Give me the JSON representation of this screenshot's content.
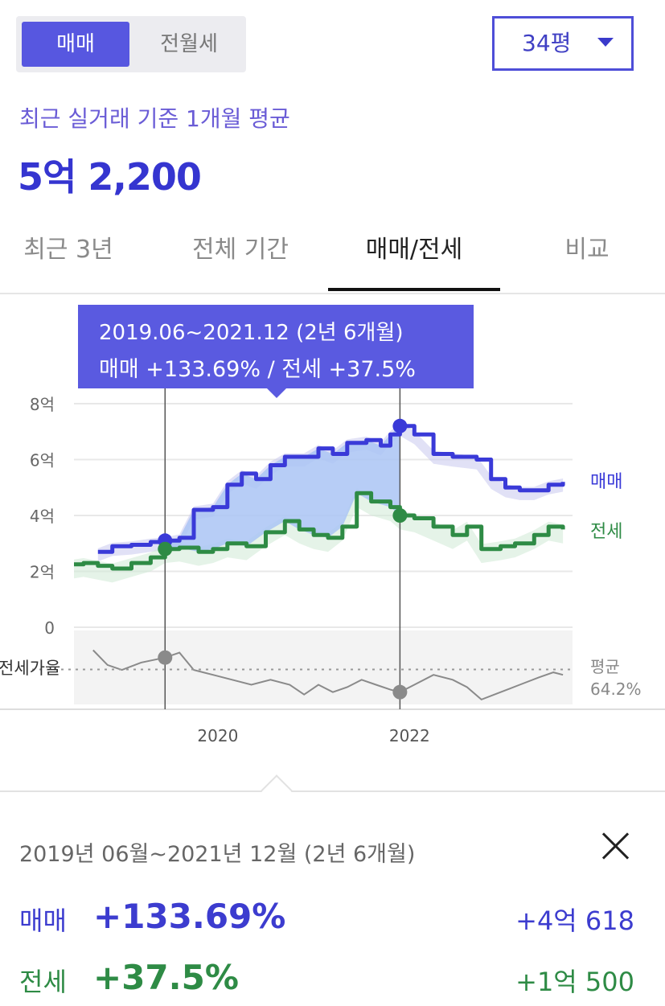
{
  "toggle": {
    "sale_label": "매매",
    "rent_label": "전월세"
  },
  "size_select": {
    "value": "34평"
  },
  "summary": {
    "subtitle": "최근 실거래 기준 1개월 평균",
    "price": "5억 2,200"
  },
  "tabs": [
    {
      "label": "최근 3년"
    },
    {
      "label": "전체 기간"
    },
    {
      "label": "매매/전세",
      "active": true
    },
    {
      "label": "비교"
    }
  ],
  "tooltip": {
    "range": "2019.06~2021.12 (2년 6개월)",
    "changes": "매매 +133.69%  /  전세 +37.5%"
  },
  "chart_data": {
    "type": "line",
    "y_unit": "억",
    "ylim": [
      0,
      8
    ],
    "yticks": [
      {
        "value": 0,
        "label": "0"
      },
      {
        "value": 2,
        "label": "2억"
      },
      {
        "value": 4,
        "label": "4억"
      },
      {
        "value": 6,
        "label": "6억"
      },
      {
        "value": 8,
        "label": "8억"
      }
    ],
    "xticks": [
      {
        "x": 2020.0,
        "label": "2020"
      },
      {
        "x": 2022.0,
        "label": "2022"
      }
    ],
    "x_range": [
      2018.5,
      2023.7
    ],
    "series": [
      {
        "name": "매매",
        "color": "#3a3ad8",
        "band_color": "#c9c8ef",
        "points": [
          [
            2018.75,
            2.7
          ],
          [
            2018.9,
            2.9
          ],
          [
            2019.1,
            2.95
          ],
          [
            2019.3,
            3.05
          ],
          [
            2019.45,
            3.1
          ],
          [
            2019.6,
            3.2
          ],
          [
            2019.75,
            4.2
          ],
          [
            2019.95,
            4.3
          ],
          [
            2020.1,
            5.1
          ],
          [
            2020.25,
            5.5
          ],
          [
            2020.4,
            5.3
          ],
          [
            2020.55,
            5.8
          ],
          [
            2020.7,
            6.1
          ],
          [
            2020.9,
            6.1
          ],
          [
            2021.05,
            6.4
          ],
          [
            2021.2,
            6.2
          ],
          [
            2021.35,
            6.6
          ],
          [
            2021.55,
            6.7
          ],
          [
            2021.7,
            6.5
          ],
          [
            2021.8,
            6.9
          ],
          [
            2021.9,
            7.2
          ],
          [
            2022.05,
            6.9
          ],
          [
            2022.25,
            6.2
          ],
          [
            2022.45,
            6.1
          ],
          [
            2022.7,
            6.0
          ],
          [
            2022.85,
            5.3
          ],
          [
            2023.0,
            5.0
          ],
          [
            2023.15,
            4.9
          ],
          [
            2023.3,
            4.9
          ],
          [
            2023.45,
            5.1
          ],
          [
            2023.6,
            5.2
          ]
        ]
      },
      {
        "name": "전세",
        "color": "#2e8b45",
        "band_color": "#cfe9d5",
        "points": [
          [
            2018.5,
            2.25
          ],
          [
            2018.6,
            2.3
          ],
          [
            2018.75,
            2.2
          ],
          [
            2018.9,
            2.1
          ],
          [
            2019.1,
            2.3
          ],
          [
            2019.3,
            2.5
          ],
          [
            2019.45,
            2.8
          ],
          [
            2019.6,
            2.85
          ],
          [
            2019.8,
            2.7
          ],
          [
            2019.95,
            2.8
          ],
          [
            2020.1,
            3.0
          ],
          [
            2020.3,
            2.9
          ],
          [
            2020.5,
            3.4
          ],
          [
            2020.7,
            3.8
          ],
          [
            2020.85,
            3.5
          ],
          [
            2021.0,
            3.3
          ],
          [
            2021.15,
            3.2
          ],
          [
            2021.3,
            3.6
          ],
          [
            2021.45,
            4.8
          ],
          [
            2021.6,
            4.5
          ],
          [
            2021.8,
            4.3
          ],
          [
            2021.9,
            4.0
          ],
          [
            2022.05,
            3.9
          ],
          [
            2022.25,
            3.6
          ],
          [
            2022.45,
            3.3
          ],
          [
            2022.6,
            3.6
          ],
          [
            2022.75,
            2.8
          ],
          [
            2022.95,
            2.9
          ],
          [
            2023.1,
            3.0
          ],
          [
            2023.3,
            3.3
          ],
          [
            2023.45,
            3.6
          ],
          [
            2023.6,
            3.5
          ]
        ]
      },
      {
        "name": "전세가율",
        "color": "#8a8a8a",
        "panel": "ratio",
        "average_label": "평균",
        "average_value": "64.2%",
        "average": 64.2,
        "ylim": [
          50,
          80
        ],
        "points": [
          [
            2018.7,
            72
          ],
          [
            2018.85,
            66
          ],
          [
            2019.0,
            64
          ],
          [
            2019.2,
            67
          ],
          [
            2019.45,
            69
          ],
          [
            2019.6,
            71
          ],
          [
            2019.75,
            64
          ],
          [
            2019.95,
            62
          ],
          [
            2020.15,
            60
          ],
          [
            2020.35,
            58
          ],
          [
            2020.55,
            60
          ],
          [
            2020.75,
            58
          ],
          [
            2020.9,
            54
          ],
          [
            2021.05,
            58
          ],
          [
            2021.2,
            55
          ],
          [
            2021.35,
            57
          ],
          [
            2021.5,
            60
          ],
          [
            2021.65,
            58
          ],
          [
            2021.8,
            56
          ],
          [
            2021.9,
            55
          ],
          [
            2022.05,
            58
          ],
          [
            2022.25,
            62
          ],
          [
            2022.45,
            60
          ],
          [
            2022.6,
            57
          ],
          [
            2022.75,
            52
          ],
          [
            2022.95,
            55
          ],
          [
            2023.15,
            58
          ],
          [
            2023.35,
            61
          ],
          [
            2023.5,
            63
          ],
          [
            2023.6,
            62
          ]
        ]
      }
    ],
    "series_labels": {
      "sale": "매매",
      "rent": "전세",
      "ratio": "전세가율"
    },
    "selection": {
      "start": 2019.45,
      "end": 2021.9
    }
  },
  "detail": {
    "range": "2019년 06월~2021년 12월 (2년 6개월)",
    "sale": {
      "label": "매매",
      "pct": "+133.69%",
      "abs": "+4억 618"
    },
    "rent": {
      "label": "전세",
      "pct": "+37.5%",
      "abs": "+1억 500"
    }
  }
}
